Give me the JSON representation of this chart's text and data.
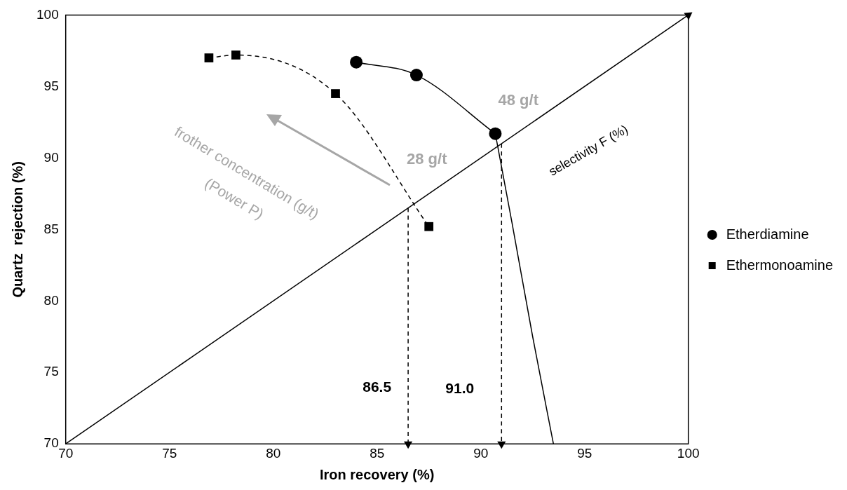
{
  "chart_data": {
    "type": "line",
    "xlabel": "Iron recovery (%)",
    "ylabel": "Quartz  rejection (%)",
    "xlim": [
      70,
      100
    ],
    "xticks": [
      70,
      75,
      80,
      85,
      90,
      95,
      100
    ],
    "ylim": [
      70,
      100
    ],
    "yticks": [
      70,
      75,
      80,
      85,
      90,
      95,
      100
    ],
    "grid": false,
    "legend": "right",
    "series": [
      {
        "name": "Etherdiamine",
        "color": "#000000",
        "type": "line",
        "marker": "circle",
        "line_style": "solid",
        "x": [
          84.0,
          86.9,
          90.7
        ],
        "values": [
          96.7,
          95.8,
          91.7
        ]
      },
      {
        "color": "#000000",
        "type": "line",
        "marker": "none",
        "line_style": "solid",
        "x": [
          90.7,
          91.5,
          92.5,
          93.5
        ],
        "values": [
          91.7,
          85.5,
          77.5,
          70.0
        ]
      },
      {
        "name": "Ethermonoamine",
        "color": "#000000",
        "type": "line",
        "marker": "square",
        "line_style": "dashed",
        "x": [
          76.9,
          78.2,
          83.0,
          87.5
        ],
        "values": [
          97.0,
          97.2,
          94.5,
          85.2
        ]
      },
      {
        "color": "#000000",
        "type": "line",
        "marker": "triangle",
        "line_style": "solid",
        "x": [
          70,
          100
        ],
        "values": [
          70,
          100
        ]
      },
      {
        "color": "#000000",
        "type": "line",
        "marker": "triangle",
        "line_style": "dashed",
        "x": [
          86.5,
          86.5
        ],
        "values": [
          86.5,
          70
        ]
      },
      {
        "color": "#000000",
        "type": "line",
        "marker": "triangle",
        "line_style": "dashed",
        "x": [
          91.0,
          91.0
        ],
        "values": [
          91.0,
          70
        ]
      }
    ],
    "annotations": [
      "48 g/t",
      "28 g/t",
      "selectivity F (%)",
      "86.5",
      "91.0",
      "frother concentration (g/t)",
      "(Power P)"
    ]
  }
}
